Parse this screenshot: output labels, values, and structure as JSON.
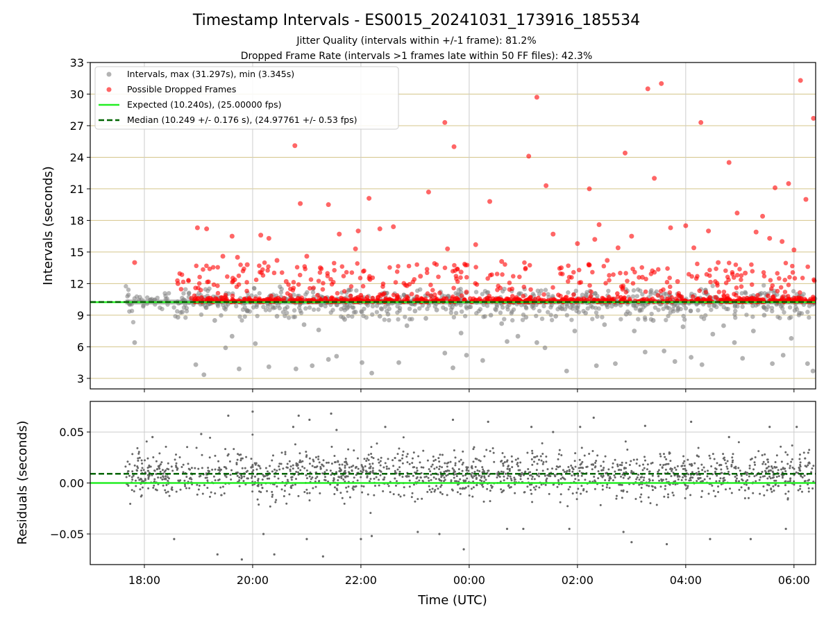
{
  "figure": {
    "title": "Timestamp Intervals - ES0015_20241031_173916_185534",
    "subtitle_1": "Jitter Quality (intervals within +/-1 frame): 81.2%",
    "subtitle_2": "Dropped Frame Rate (intervals >1 frames late within 50 FF files): 42.3%"
  },
  "colors": {
    "intervals": "#808080",
    "dropped": "#ff0000",
    "expected": "#22ee22",
    "median": "#006400",
    "grid_top": "#d4c58a",
    "grid_bottom": "#cccccc",
    "residuals": "#666666"
  },
  "chart_data": [
    {
      "type": "scatter",
      "xlabel": "",
      "ylabel": "Intervals (seconds)",
      "x_axis": {
        "type": "time",
        "range_hours": [
          17.0,
          30.4
        ],
        "tick_hours": [
          18,
          20,
          22,
          24,
          26,
          28,
          30
        ],
        "tick_labels": []
      },
      "ylim": [
        2.0,
        33.0
      ],
      "yticks": [
        3,
        6,
        9,
        12,
        15,
        18,
        21,
        24,
        27,
        30,
        33
      ],
      "grid": "horizontal-and-vertical",
      "legend_position": "upper-left",
      "legend": [
        "Intervals, max (31.297s), min (3.345s)",
        "Possible Dropped Frames",
        "Expected (10.240s), (25.00000 fps)",
        "Median (10.249 +/- 0.176 s), (24.97761 +/- 0.53 fps)"
      ],
      "expected_interval": 10.24,
      "median_interval": 10.249,
      "data_start_hour": 17.65,
      "data_end_hour": 30.4,
      "series": [
        {
          "name": "Intervals, max (31.297s), min (3.345s)",
          "x_hours": [
            17.82,
            18.62,
            18.7,
            18.95,
            19.1,
            19.3,
            19.5,
            19.62,
            19.75,
            19.9,
            20.05,
            20.3,
            20.45,
            20.6,
            20.8,
            20.95,
            21.1,
            21.22,
            21.4,
            21.55,
            21.7,
            21.9,
            22.02,
            22.2,
            22.35,
            22.5,
            22.7,
            22.85,
            23.0,
            23.2,
            23.4,
            23.55,
            23.7,
            23.85,
            23.95,
            24.25,
            24.4,
            24.6,
            24.7,
            24.9,
            25.05,
            25.25,
            25.4,
            25.6,
            25.8,
            25.95,
            26.15,
            26.35,
            26.5,
            26.7,
            26.9,
            27.05,
            27.25,
            27.4,
            27.6,
            27.8,
            27.95,
            28.1,
            28.3,
            28.5,
            28.7,
            28.9,
            29.05,
            29.25,
            29.45,
            29.6,
            29.8,
            29.95,
            30.1,
            30.25,
            30.35
          ],
          "y": [
            6.4,
            8.8,
            9.3,
            4.3,
            3.345,
            8.5,
            5.9,
            7.0,
            3.9,
            9.4,
            6.3,
            4.1,
            8.9,
            9.6,
            3.9,
            8.1,
            4.2,
            7.6,
            4.8,
            5.1,
            8.6,
            9.3,
            4.5,
            3.5,
            8.9,
            9.1,
            4.5,
            8.0,
            9.4,
            8.7,
            9.5,
            5.4,
            4.0,
            7.3,
            5.2,
            4.7,
            9.0,
            8.2,
            6.5,
            7.0,
            8.8,
            6.4,
            5.9,
            8.9,
            3.7,
            7.5,
            9.2,
            4.2,
            8.1,
            4.4,
            9.1,
            7.5,
            5.5,
            8.5,
            5.6,
            4.6,
            7.9,
            5.0,
            4.3,
            7.2,
            8.0,
            6.4,
            4.9,
            7.5,
            9.0,
            4.4,
            5.2,
            6.8,
            9.2,
            4.4,
            3.7
          ]
        },
        {
          "name": "Possible Dropped Frames",
          "x_hours": [
            17.82,
            18.62,
            18.98,
            19.15,
            19.45,
            19.62,
            19.72,
            19.9,
            20.15,
            20.3,
            20.45,
            20.62,
            20.78,
            20.88,
            21.0,
            21.25,
            21.4,
            21.6,
            21.9,
            21.95,
            22.15,
            22.35,
            22.6,
            22.85,
            23.1,
            23.25,
            23.55,
            23.6,
            23.72,
            23.85,
            23.95,
            24.12,
            24.38,
            24.6,
            24.85,
            25.1,
            25.25,
            25.42,
            25.55,
            25.7,
            25.85,
            26.0,
            26.22,
            26.32,
            26.4,
            26.55,
            26.75,
            26.88,
            27.0,
            27.2,
            27.3,
            27.42,
            27.55,
            27.72,
            27.85,
            28.0,
            28.15,
            28.28,
            28.42,
            28.6,
            28.8,
            28.95,
            29.1,
            29.3,
            29.42,
            29.55,
            29.65,
            29.78,
            29.9,
            30.0,
            30.12,
            30.22,
            30.36
          ],
          "y": [
            14.0,
            12.0,
            17.3,
            17.2,
            14.6,
            16.5,
            14.5,
            13.8,
            16.6,
            16.3,
            14.2,
            12.2,
            25.1,
            19.6,
            14.6,
            13.5,
            19.5,
            16.7,
            15.3,
            17.0,
            20.1,
            17.2,
            17.4,
            11.8,
            12.7,
            20.7,
            27.3,
            15.3,
            25.0,
            13.1,
            11.2,
            15.7,
            19.8,
            14.1,
            10.5,
            24.1,
            29.7,
            21.3,
            16.7,
            13.5,
            12.6,
            15.8,
            21.0,
            16.2,
            17.6,
            14.2,
            15.4,
            24.4,
            16.5,
            12.6,
            30.5,
            22.0,
            31.0,
            17.3,
            12.2,
            17.5,
            15.4,
            27.3,
            17.0,
            14.0,
            23.5,
            18.7,
            13.0,
            16.9,
            18.4,
            16.3,
            21.1,
            16.0,
            21.5,
            15.2,
            31.297,
            20.0,
            27.7
          ]
        },
        {
          "name": "Expected (10.240s), (25.00000 fps)",
          "x_hours": [
            17.0,
            30.4
          ],
          "y": [
            10.24,
            10.24
          ]
        },
        {
          "name": "Median (10.249 +/- 0.176 s), (24.97761 +/- 0.53 fps)",
          "x_hours": [
            17.0,
            30.4
          ],
          "y": [
            10.249,
            10.249
          ]
        }
      ]
    },
    {
      "type": "scatter",
      "xlabel": "Time (UTC)",
      "ylabel": "Residuals (seconds)",
      "x_axis": {
        "type": "time",
        "range_hours": [
          17.0,
          30.4
        ],
        "tick_hours": [
          18,
          20,
          22,
          24,
          26,
          28,
          30
        ],
        "tick_labels": [
          "18:00",
          "20:00",
          "22:00",
          "00:00",
          "02:00",
          "04:00",
          "06:00"
        ]
      },
      "ylim": [
        -0.08,
        0.08
      ],
      "yticks": [
        -0.05,
        0.0,
        0.05
      ],
      "ytick_labels": [
        "−0.05",
        "0.00",
        "0.05"
      ],
      "grid": "horizontal-and-vertical",
      "expected_residual": 0.0,
      "median_residual": 0.009,
      "series": [
        {
          "name": "",
          "x_hours": [
            18.15,
            18.55,
            19.05,
            19.35,
            19.55,
            19.8,
            20.0,
            20.2,
            20.4,
            20.75,
            20.85,
            21.0,
            21.05,
            21.3,
            21.45,
            21.55,
            22.0,
            22.2,
            22.45,
            23.05,
            23.45,
            23.7,
            23.9,
            24.35,
            24.7,
            25.0,
            25.15,
            25.55,
            25.85,
            26.05,
            26.3,
            26.85,
            27.0,
            27.25,
            27.65,
            28.1,
            28.45,
            28.8,
            29.2,
            29.55,
            29.85,
            30.05
          ],
          "y": [
            0.045,
            -0.055,
            0.048,
            -0.07,
            0.066,
            -0.075,
            0.07,
            -0.05,
            -0.07,
            0.055,
            0.066,
            -0.055,
            0.062,
            -0.072,
            0.068,
            0.052,
            -0.055,
            -0.052,
            0.055,
            -0.048,
            -0.05,
            0.062,
            -0.065,
            0.06,
            -0.045,
            -0.045,
            0.055,
            0.05,
            -0.045,
            0.055,
            0.064,
            -0.048,
            -0.058,
            0.056,
            -0.06,
            0.06,
            -0.055,
            0.045,
            -0.055,
            0.055,
            -0.045,
            0.055
          ]
        }
      ]
    }
  ]
}
